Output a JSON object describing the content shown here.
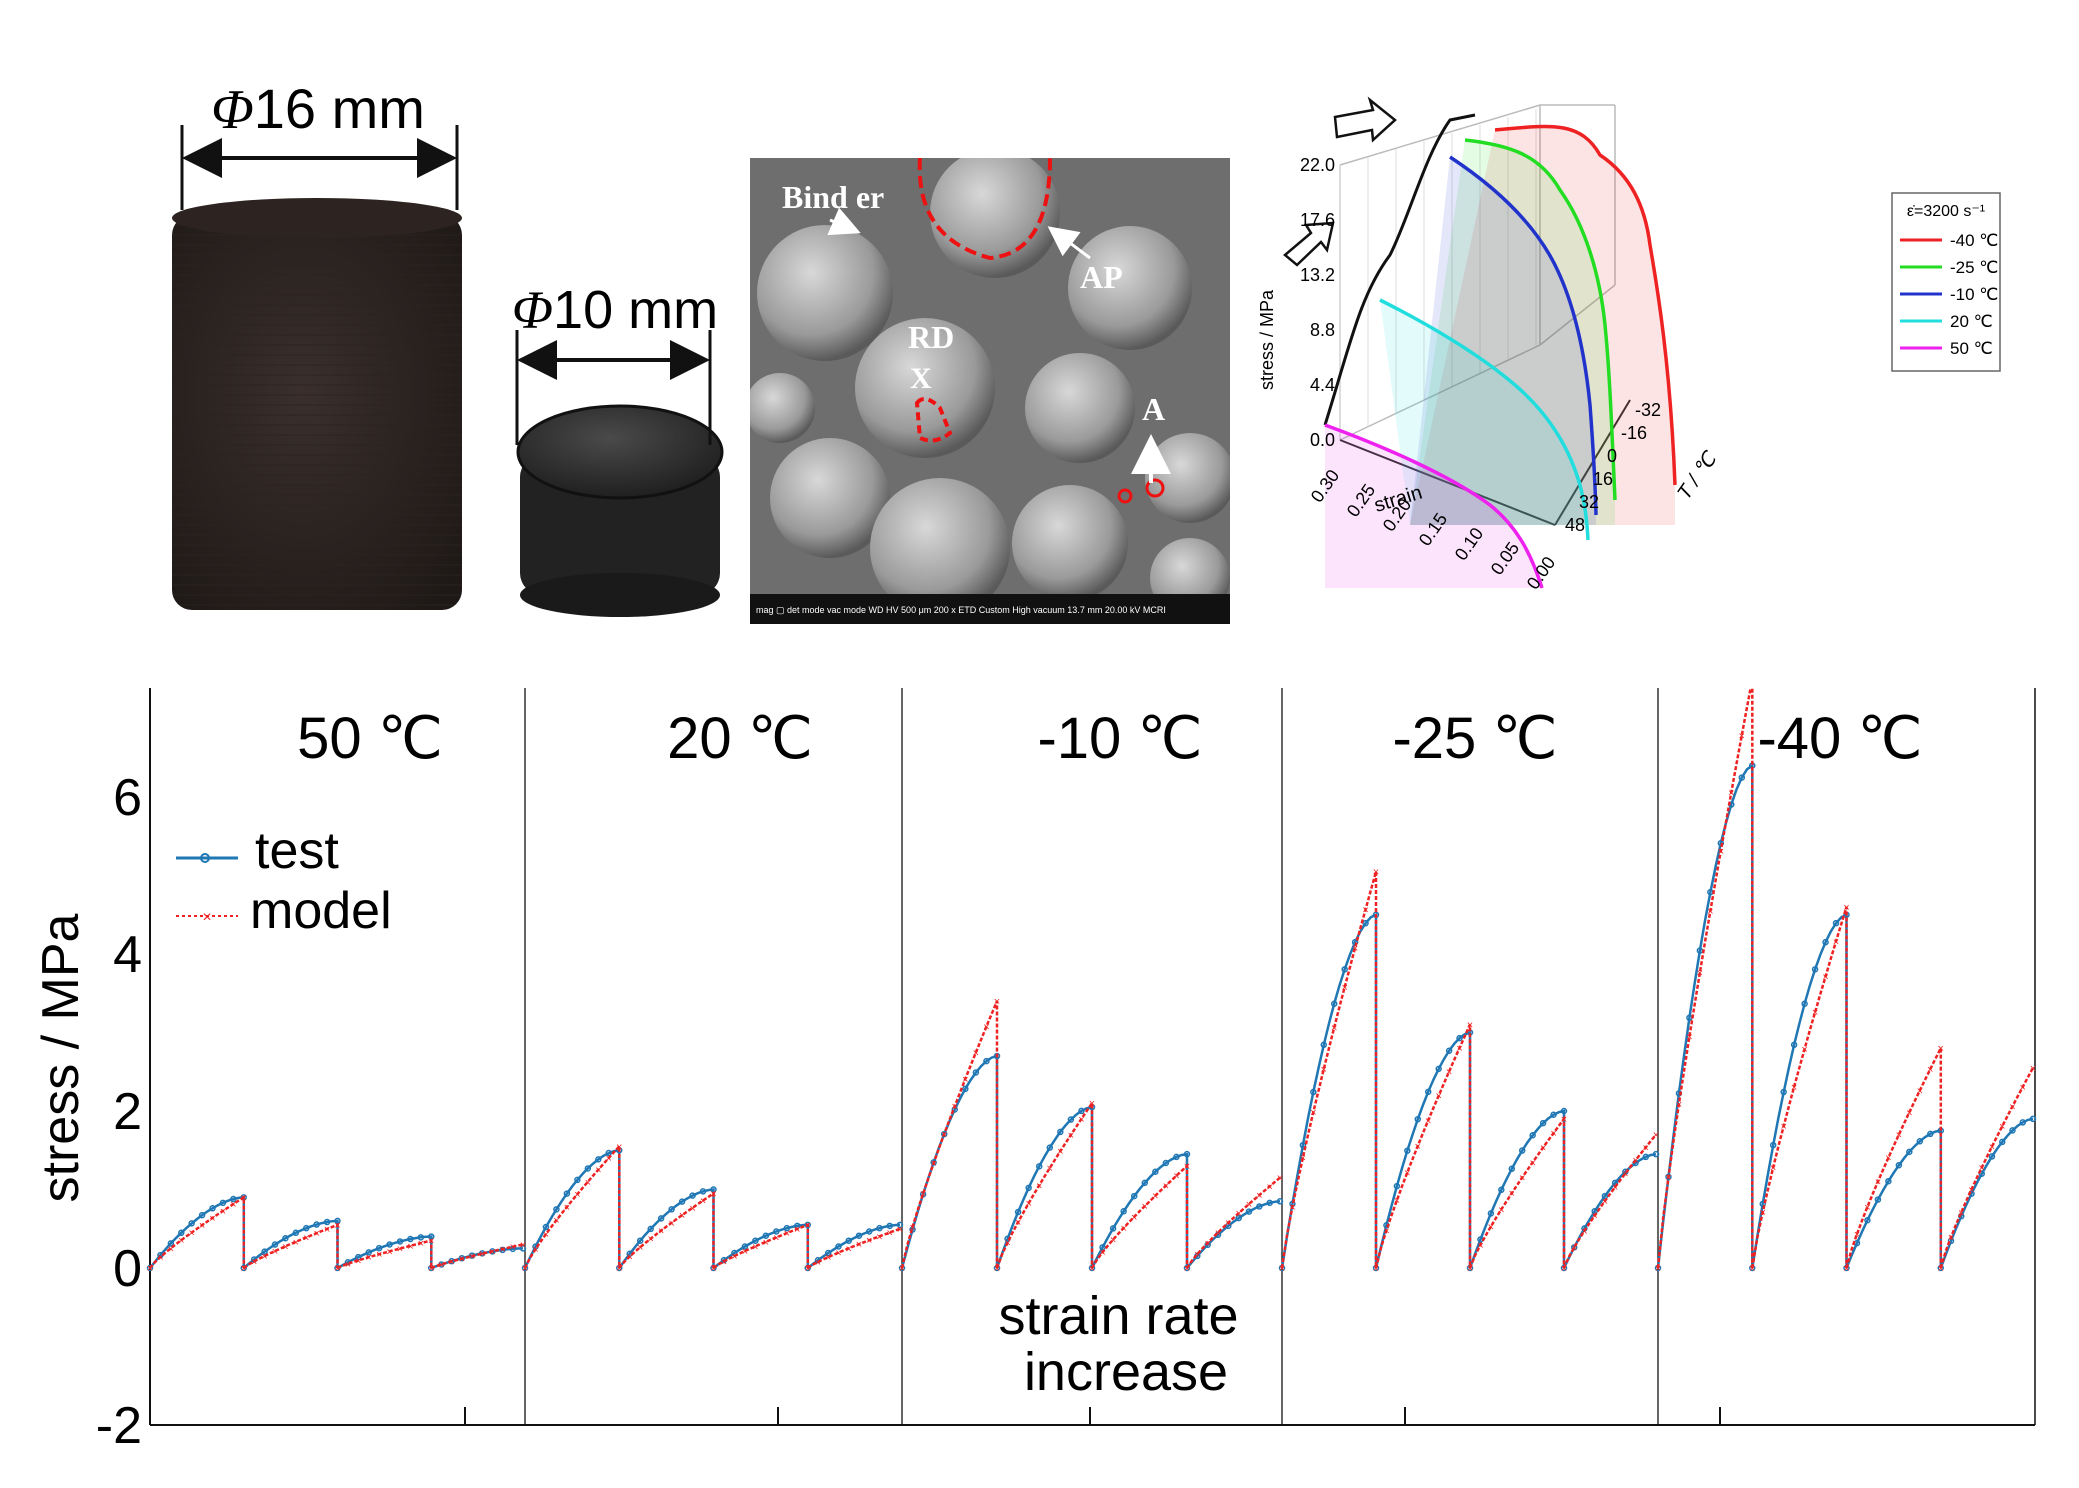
{
  "specimens": {
    "large_label_symbol": "Φ",
    "large_label_value": "16 mm",
    "small_label_symbol": "Φ",
    "small_label_value": "10 mm"
  },
  "sem": {
    "labels": {
      "binder": "Bind er",
      "ap": "AP",
      "rd": "RD",
      "x": "X",
      "a": "A"
    },
    "footer": "mag ▢  det  mode  vac mode  WD  HV  500 μm  200 x  ETD  Custom  High vacuum  13.7 mm  20.00 kV  MCRI"
  },
  "plot3d": {
    "z_label": "stress / MPa",
    "x_label": "strain",
    "y_label": "T / ℃",
    "z_ticks": [
      "0.0",
      "4.4",
      "8.8",
      "13.2",
      "17.6",
      "22.0"
    ],
    "x_ticks": [
      "0.30",
      "0.25",
      "0.20",
      "0.15",
      "0.10",
      "0.05",
      "0.00"
    ],
    "y_ticks": [
      "48",
      "32",
      "16",
      "0",
      "-16",
      "-32"
    ],
    "legend_title": "ε̇=3200 s⁻¹",
    "legend": [
      {
        "label": "-40 ℃",
        "color": "#ee2222"
      },
      {
        "label": "-25 ℃",
        "color": "#22dd22"
      },
      {
        "label": "-10 ℃",
        "color": "#2233cc"
      },
      {
        "label": "20 ℃",
        "color": "#22dddd"
      },
      {
        "label": "50 ℃",
        "color": "#ee22ee"
      }
    ]
  },
  "chart_data": {
    "type": "line",
    "ylabel": "stress / MPa",
    "ylim": [
      -2,
      7.5
    ],
    "yticks": [
      -2,
      0,
      2,
      4,
      6
    ],
    "panels": [
      "50 ℃",
      "20 ℃",
      "-10 ℃",
      "-25 ℃",
      "-40 ℃"
    ],
    "annotation": "strain rate increase",
    "series": [
      {
        "name": "test",
        "color": "#1f77b4",
        "peaks": [
          [
            0.9,
            0.6,
            0.4,
            0.25
          ],
          [
            1.5,
            1.0,
            0.55,
            0.55
          ],
          [
            2.7,
            2.05,
            1.45,
            0.85
          ],
          [
            4.5,
            3.0,
            2.0,
            1.45
          ],
          [
            6.4,
            4.5,
            1.75,
            1.9
          ]
        ]
      },
      {
        "name": "model",
        "color": "#ee2222",
        "peaks": [
          [
            0.9,
            0.55,
            0.35,
            0.3
          ],
          [
            1.55,
            0.95,
            0.55,
            0.5
          ],
          [
            3.4,
            2.1,
            1.3,
            1.15
          ],
          [
            5.05,
            3.1,
            1.9,
            1.7
          ],
          [
            7.5,
            4.6,
            2.8,
            2.55
          ]
        ]
      }
    ]
  }
}
